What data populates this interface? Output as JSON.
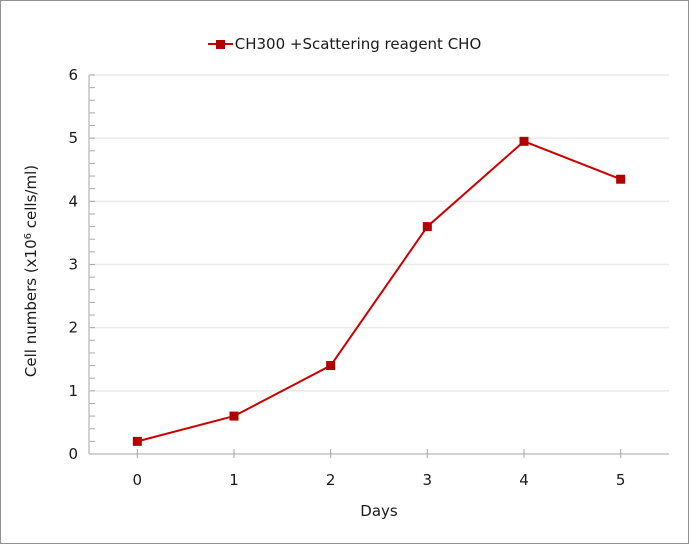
{
  "window": {
    "background": "#FFFFFF",
    "border_color": "#8F9193"
  },
  "chart_data": {
    "type": "line",
    "title": "",
    "legend_position": "top-center",
    "categories": [
      "0",
      "1",
      "2",
      "3",
      "4",
      "5"
    ],
    "series": [
      {
        "name": "CH300 +Scattering reagent CHO",
        "values": [
          0.2,
          0.6,
          1.4,
          3.6,
          4.95,
          4.35
        ],
        "line_color": "#CC0000",
        "marker_color": "#B00000",
        "marker": "square"
      }
    ],
    "xlabel": "Days",
    "ylabel": "Cell numbers (x10^6 cells/ml)",
    "ylabel_parts": {
      "pre": "Cell numbers (x10",
      "sup": "6",
      "post": " cells/ml)"
    },
    "ylim": [
      0,
      6
    ],
    "y_major_step": 1,
    "y_minor_step": 0.2,
    "y_ticks": [
      "0",
      "1",
      "2",
      "3",
      "4",
      "5",
      "6"
    ],
    "grid": "horizontal-major",
    "colors": {
      "grid": "#EAEAEA",
      "axis": "#C3C3C3",
      "tick": "#A8A8A8",
      "text": "#1A1A1A"
    }
  }
}
